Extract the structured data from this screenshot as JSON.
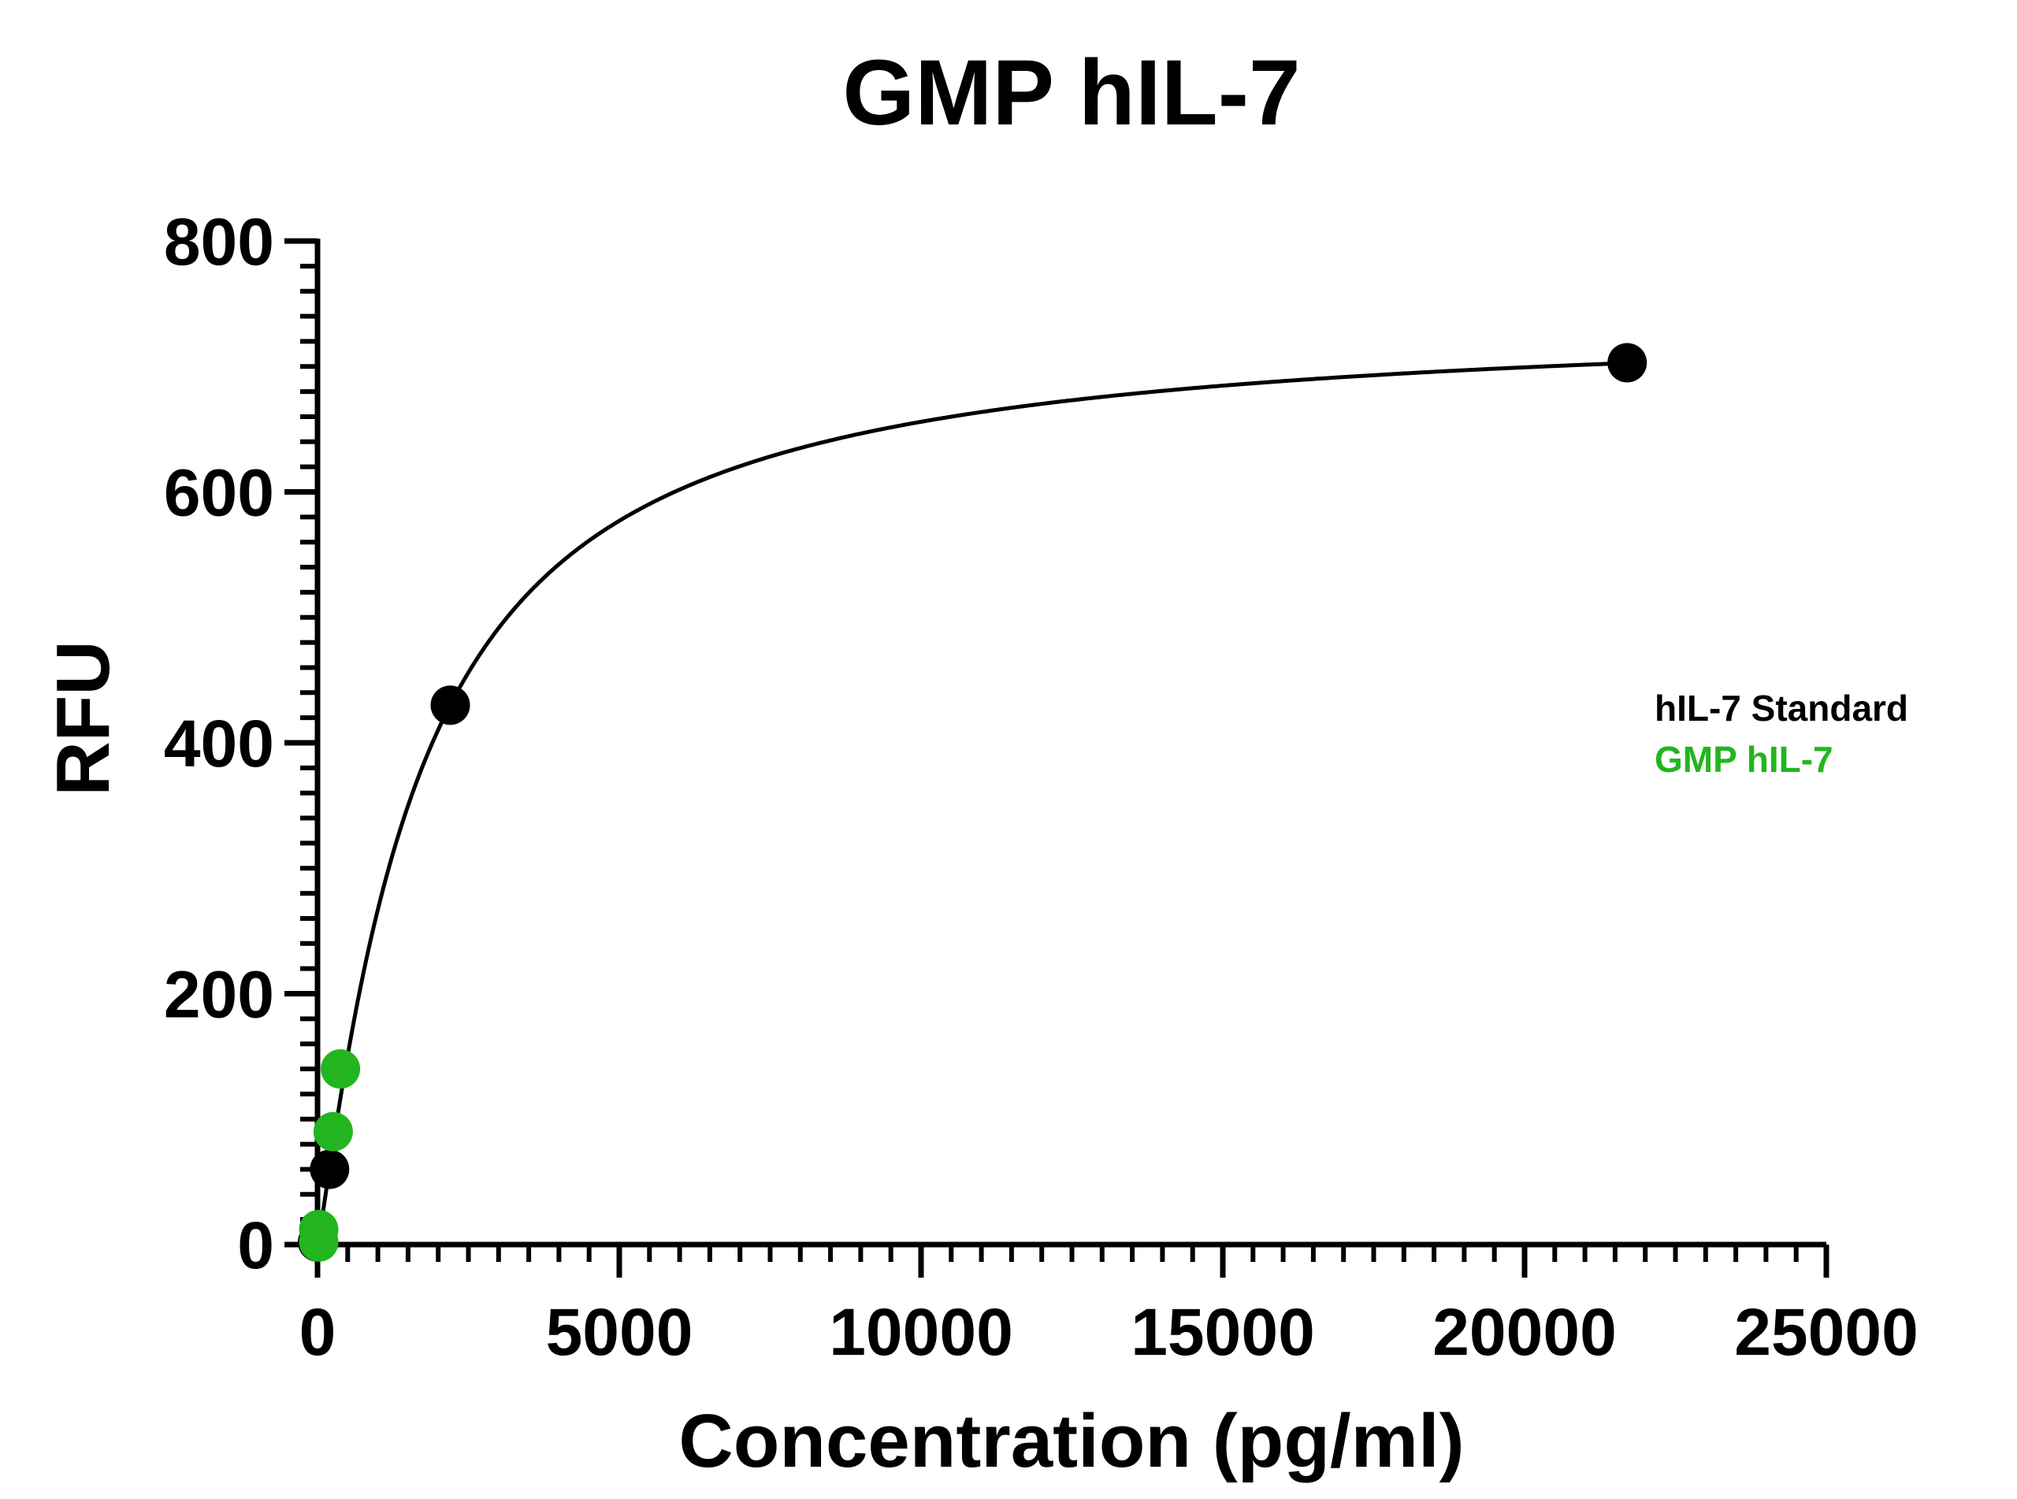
{
  "chart_data": {
    "type": "scatter",
    "title": "GMP hIL-7",
    "xlabel": "Concentration (pg/ml)",
    "ylabel": "RFU",
    "xlim": [
      0,
      25000
    ],
    "ylim": [
      0,
      800
    ],
    "x_ticks": [
      0,
      5000,
      10000,
      15000,
      20000,
      25000
    ],
    "y_ticks": [
      0,
      200,
      400,
      600,
      800
    ],
    "x_tick_labels": [
      "0",
      "5000",
      "10000",
      "15000",
      "20000",
      "25000"
    ],
    "y_tick_labels": [
      "0",
      "200",
      "400",
      "600",
      "800"
    ],
    "grid": false,
    "legend_position": "right",
    "series": [
      {
        "name": "hIL-7 Standard",
        "color": "#000000",
        "x": [
          0,
          200,
          2200,
          21700
        ],
        "y": [
          2,
          60,
          430,
          703
        ],
        "fit_curve": true
      },
      {
        "name": "GMP hIL-7",
        "color": "#22b51f",
        "x": [
          20,
          20,
          260,
          380
        ],
        "y": [
          2,
          12,
          90,
          140
        ],
        "fit_curve": false
      }
    ]
  }
}
